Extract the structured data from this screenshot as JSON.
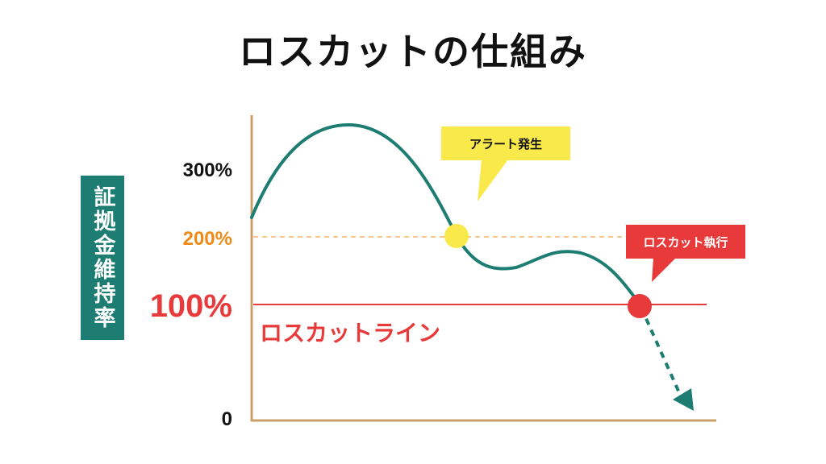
{
  "title": "ロスカットの仕組み",
  "y_axis_label": "証拠金維持率",
  "y_ticks": {
    "t300": "300%",
    "t200": "200%",
    "t100": "100%",
    "t0": "0"
  },
  "losscut_line_label": "ロスカットライン",
  "callouts": {
    "alert": "アラート発生",
    "execution": "ロスカット執行"
  },
  "colors": {
    "curve": "#1e7d73",
    "axis": "#c9a06a",
    "alert_line": "#ef8a17",
    "losscut_line": "#e83a3a",
    "alert_marker": "#f9e94a",
    "execution_marker": "#e83a3a"
  }
}
